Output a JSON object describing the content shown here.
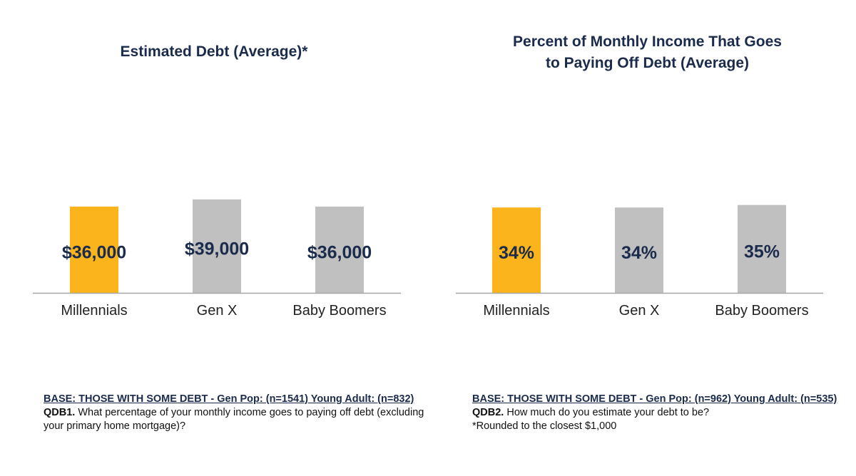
{
  "charts": [
    {
      "title": "Estimated Debt (Average)*",
      "footnote": {
        "base": "BASE: THOSE WITH SOME DEBT - Gen Pop: (n=1541) Young Adult: (n=832)",
        "question_label": "QDB1.",
        "question_text": " What percentage of your monthly income goes to paying off debt (excluding your primary home mortgage)?",
        "note": ""
      }
    },
    {
      "title_line1": "Percent of Monthly Income That Goes",
      "title_line2": "to Paying Off Debt (Average)",
      "footnote": {
        "base": "BASE: THOSE WITH SOME DEBT - Gen Pop: (n=962) Young Adult: (n=535)",
        "question_label": "QDB2.",
        "question_text": " How much do you estimate your debt to be?",
        "note": "*Rounded to the closest $1,000"
      }
    }
  ],
  "chart_data": [
    {
      "type": "bar",
      "title": "Estimated Debt (Average)*",
      "categories": [
        "Millennials",
        "Gen X",
        "Baby Boomers"
      ],
      "values": [
        36000,
        39000,
        36000
      ],
      "data_labels": [
        "$36,000",
        "$39,000",
        "$36,000"
      ],
      "colors": [
        "#fbb41c",
        "#c0c0c0",
        "#c0c0c0"
      ],
      "ylim": [
        0,
        110000
      ],
      "grid": false,
      "legend": "none"
    },
    {
      "type": "bar",
      "title": "Percent of Monthly Income That Goes to Paying Off Debt (Average)",
      "categories": [
        "Millennials",
        "Gen X",
        "Baby Boomers"
      ],
      "values": [
        34,
        34,
        35
      ],
      "data_labels": [
        "34%",
        "34%",
        "35%"
      ],
      "colors": [
        "#fbb41c",
        "#c0c0c0",
        "#c0c0c0"
      ],
      "ylim": [
        0,
        105
      ],
      "grid": false,
      "legend": "none"
    }
  ],
  "style": {
    "title_color": "#1a2b4c",
    "label_color": "#1a2b4c",
    "axis_color": "#a6a6a6"
  }
}
